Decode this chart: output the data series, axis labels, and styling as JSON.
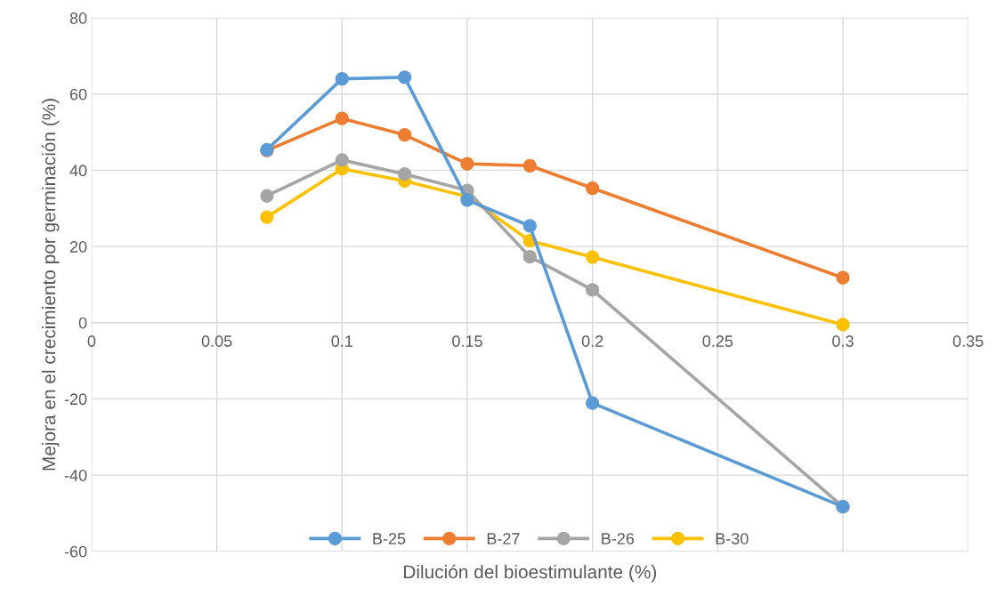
{
  "chart_data": {
    "type": "line",
    "xlabel": "Dilución del bioestimulante (%)",
    "ylabel": "Mejora en el crecimiento por germinación (%)",
    "x": [
      0.07,
      0.1,
      0.125,
      0.15,
      0.175,
      0.2,
      0.3
    ],
    "series": [
      {
        "name": "B-25",
        "color": "#5b9bd5",
        "x": [
          0.07,
          0.1,
          0.125,
          0.15,
          0.175,
          0.2,
          0.3
        ],
        "values": [
          45.4,
          64,
          64.4,
          32.2,
          25.4,
          -21.1,
          -48.3
        ]
      },
      {
        "name": "B-27",
        "color": "#ed7d31",
        "values": [
          45.2,
          53.6,
          49.3,
          41.7,
          41.2,
          35.3,
          11.8
        ]
      },
      {
        "name": "B-26",
        "color": "#a5a5a5",
        "values": [
          33.3,
          42.7,
          39.0,
          34.7,
          17.3,
          8.6,
          -48.3
        ]
      },
      {
        "name": "B-30",
        "color": "#ffc000",
        "values": [
          27.7,
          40.4,
          37.2,
          33.1,
          21.5,
          17.2,
          -0.5
        ]
      }
    ],
    "xlim": [
      0,
      0.35
    ],
    "xticks": [
      0,
      0.05,
      0.1,
      0.15,
      0.2,
      0.25,
      0.3,
      0.35
    ],
    "ylim": [
      -60,
      80
    ],
    "yticks": [
      -60,
      -40,
      -20,
      0,
      20,
      40,
      60,
      80
    ],
    "grid": true,
    "legend": "bottom",
    "marker": "circle",
    "line_style": "solid"
  }
}
